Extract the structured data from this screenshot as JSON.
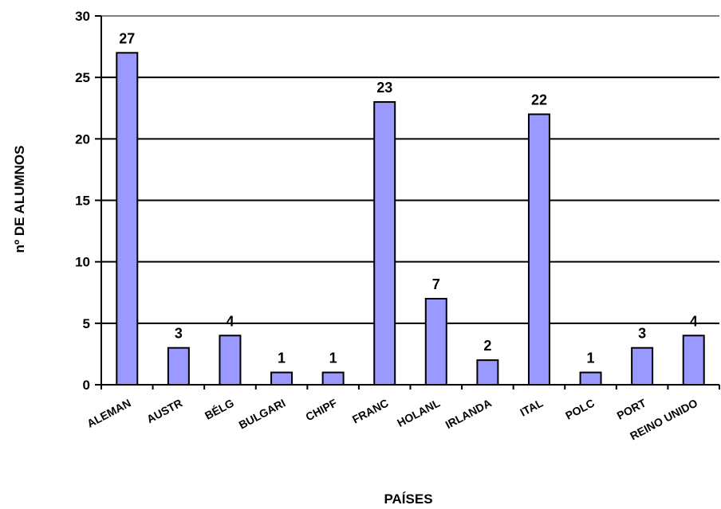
{
  "chart_data": {
    "type": "bar",
    "title": "",
    "xlabel": "PAÍSES",
    "ylabel": "nº DE ALUMNOS",
    "ylim": [
      0,
      30
    ],
    "yticks": [
      0,
      5,
      10,
      15,
      20,
      25,
      30
    ],
    "grid": true,
    "legend": "none",
    "categories": [
      "ALEMAN",
      "AUSTR",
      "BÉLG",
      "BULGARI",
      "CHIPF",
      "FRANC",
      "HOLANL",
      "IRLANDA",
      "ITAL",
      "POLC",
      "PORT",
      "REINO UNIDO"
    ],
    "values": [
      27,
      3,
      4,
      1,
      1,
      23,
      7,
      2,
      22,
      1,
      3,
      4
    ],
    "bar_color": "#9999ff",
    "bar_border": "#000000"
  }
}
